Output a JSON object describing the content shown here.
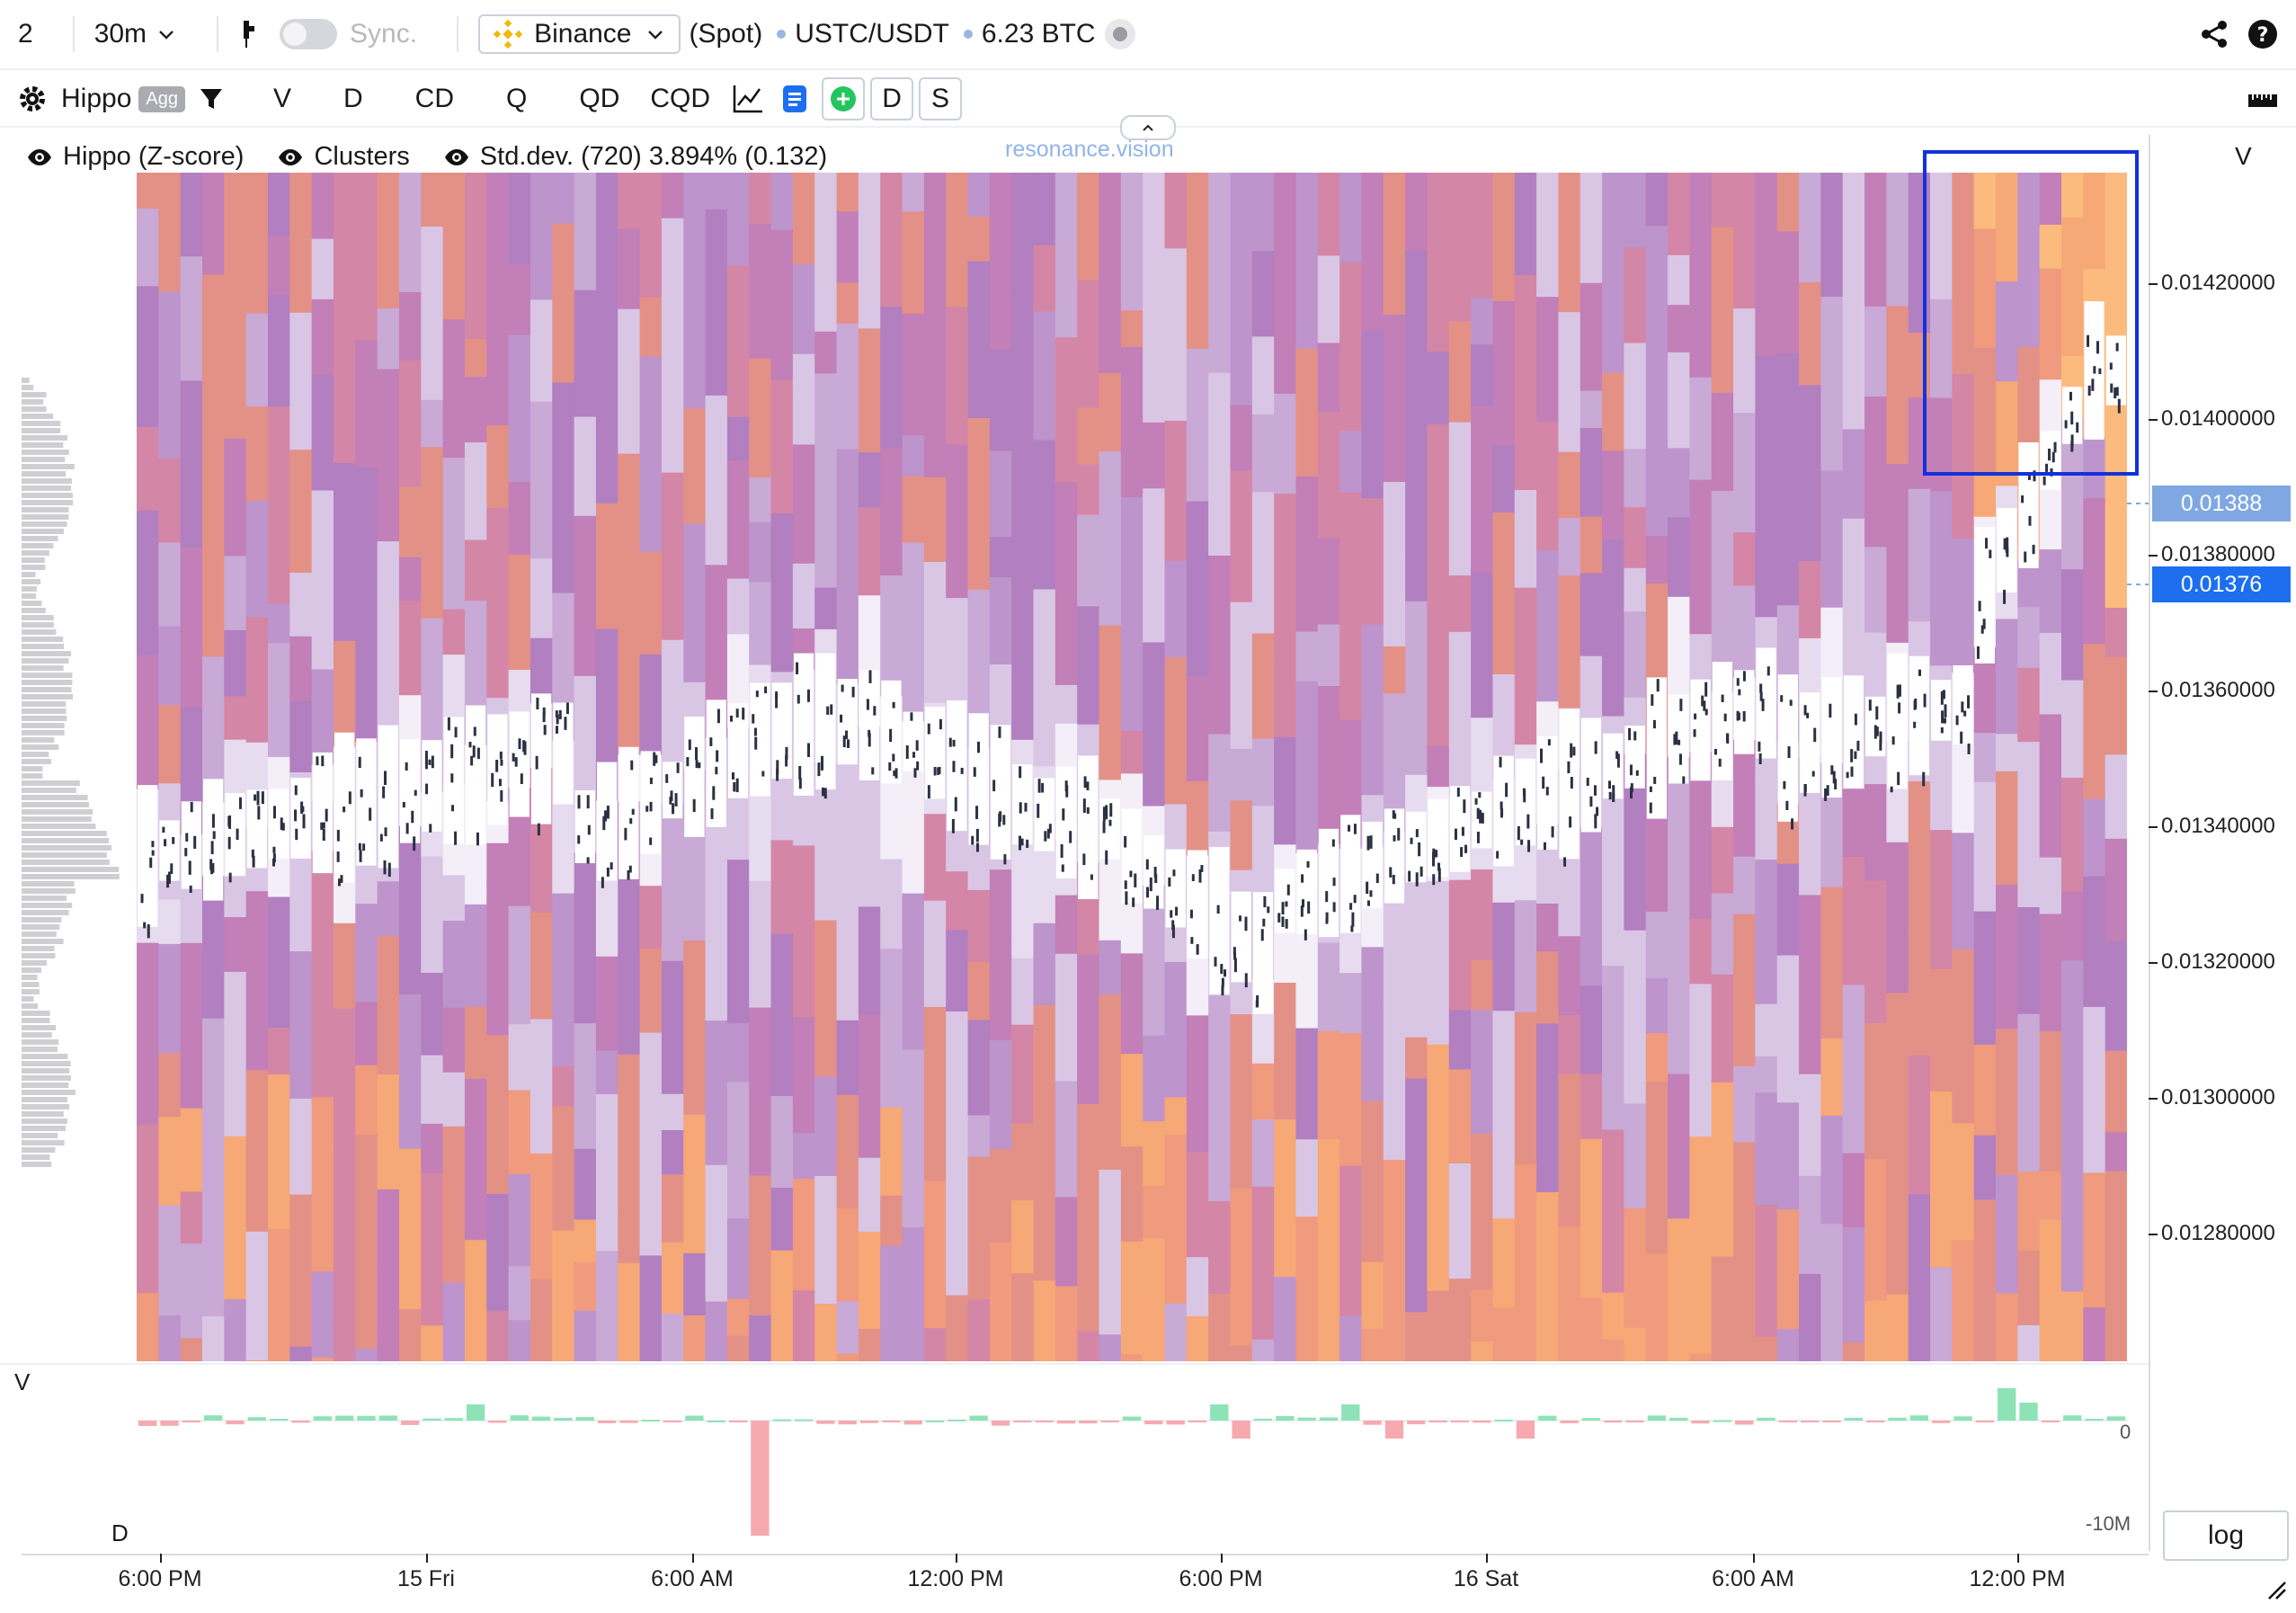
{
  "topbar": {
    "layout_count": "2",
    "interval": "30m",
    "sync_label": "Sync.",
    "exchange": "Binance",
    "market_type": "(Spot)",
    "pair": "USTC/USDT",
    "volume": "6.23 BTC"
  },
  "toolbar": {
    "indicator": "Hippo",
    "agg_badge": "Agg",
    "buttons": [
      "V",
      "D",
      "CD",
      "Q",
      "QD",
      "CQD"
    ],
    "box_buttons": [
      "D",
      "S"
    ]
  },
  "legend": {
    "items": [
      "Hippo (Z-score)",
      "Clusters",
      "Std.dev. (720) 3.894% (0.132)"
    ]
  },
  "watermark": "resonance.vision",
  "price_axis": {
    "label": "V",
    "ticks": [
      "0.01420000",
      "0.01400000",
      "0.01380000",
      "0.01360000",
      "0.01340000",
      "0.01320000",
      "0.01300000",
      "0.01280000"
    ],
    "tag_1": "0.01388",
    "tag_2": "0.01376"
  },
  "volume_pane": {
    "label_v": "V",
    "label_d": "D",
    "tick_zero": "0",
    "tick_low": "-10M"
  },
  "time_axis": [
    "6:00 PM",
    "15 Fri",
    "6:00 AM",
    "12:00 PM",
    "6:00 PM",
    "16 Sat",
    "6:00 AM",
    "12:00 PM"
  ],
  "log_button": "log",
  "colors": {
    "accent_blue": "#1e6ff0",
    "highlight_box": "#1432d8",
    "heat_low": "#ebe3f2",
    "heat_mid": "#b98cc6",
    "heat_high": "#f2a27a",
    "buy": "#8ee3b6",
    "sell": "#f7a9b0"
  }
}
